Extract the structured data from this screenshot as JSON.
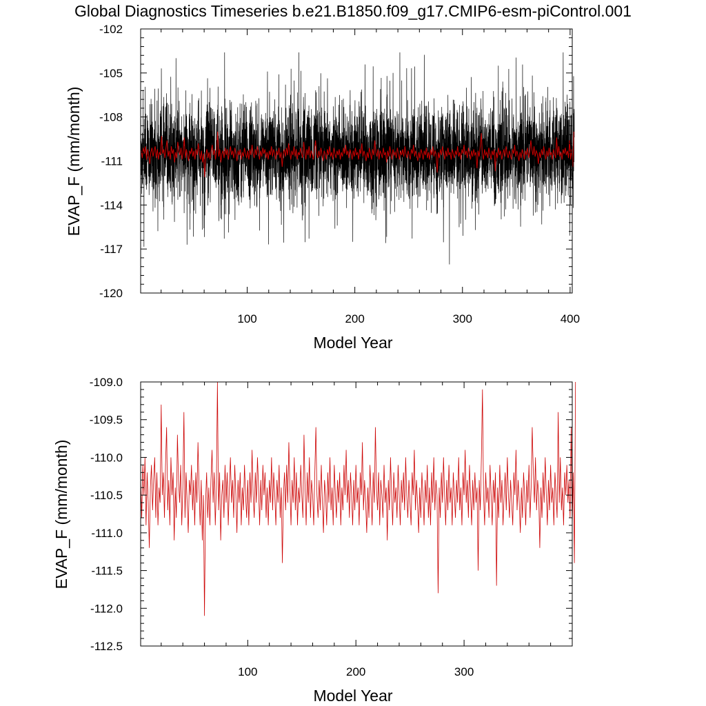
{
  "title": "Global Diagnostics Timeseries b.e21.B1850.f09_g17.CMIP6-esm-piControl.001",
  "colors": {
    "monthly": "#000000",
    "annual": "#cc0000"
  },
  "chart_data": [
    {
      "type": "line",
      "xlabel": "Model Year",
      "ylabel": "EVAP_F (mm/month)",
      "xlim": [
        1,
        402
      ],
      "ylim": [
        -120,
        -102
      ],
      "xticks": [
        100,
        200,
        300,
        400
      ],
      "yticks": [
        -120,
        -117,
        -114,
        -111,
        -108,
        -105,
        -102
      ],
      "yticklabels": [
        "-120",
        "-117",
        "-114",
        "-111",
        "-108",
        "-105",
        "-102"
      ],
      "series": [
        {
          "kind": "monthly",
          "color": "#000000",
          "mean": -110.4,
          "amplitude": 2.8,
          "min": -118.4,
          "max": -103.6,
          "points_per_year": 12
        },
        {
          "kind": "annual",
          "color": "#cc0000"
        }
      ]
    },
    {
      "type": "line",
      "xlabel": "Model Year",
      "ylabel": "EVAP_F (mm/month)",
      "xlim": [
        1,
        400
      ],
      "ylim": [
        -112.5,
        -109.0
      ],
      "xticks": [
        100,
        200,
        300
      ],
      "yticks": [
        -112.5,
        -112.0,
        -111.5,
        -111.0,
        -110.5,
        -110.0,
        -109.5,
        -109.0
      ],
      "yticklabels": [
        "-112.5",
        "-112.0",
        "-111.5",
        "-111.0",
        "-110.5",
        "-110.0",
        "-109.5",
        "-109.0"
      ],
      "series": [
        {
          "kind": "annual",
          "color": "#cc0000",
          "x_start": 1,
          "values": [
            -110.3,
            -110.8,
            -110.1,
            -110.5,
            -110.0,
            -110.9,
            -110.2,
            -110.6,
            -111.2,
            -110.4,
            -110.1,
            -110.7,
            -110.3,
            -110.0,
            -110.8,
            -110.2,
            -110.9,
            -110.4,
            -110.6,
            -109.3,
            -110.5,
            -110.2,
            -110.8,
            -110.1,
            -109.6,
            -110.7,
            -110.3,
            -110.9,
            -110.0,
            -110.5,
            -110.2,
            -111.1,
            -110.4,
            -110.8,
            -109.7,
            -110.3,
            -110.6,
            -110.1,
            -110.9,
            -110.4,
            -109.4,
            -110.8,
            -110.2,
            -110.6,
            -111.0,
            -110.3,
            -110.5,
            -110.1,
            -110.7,
            -110.3,
            -110.9,
            -110.2,
            -110.6,
            -109.8,
            -110.4,
            -110.9,
            -110.3,
            -111.1,
            -110.5,
            -112.1,
            -110.6,
            -110.2,
            -110.8,
            -110.4,
            -110.9,
            -110.3,
            -109.9,
            -110.6,
            -110.2,
            -110.9,
            -110.4,
            -109.0,
            -110.7,
            -110.2,
            -111.1,
            -110.5,
            -110.3,
            -110.8,
            -110.1,
            -110.6,
            -110.2,
            -110.9,
            -110.4,
            -110.0,
            -110.6,
            -110.3,
            -110.8,
            -110.1,
            -110.5,
            -111.0,
            -110.3,
            -110.6,
            -110.2,
            -110.9,
            -110.4,
            -110.7,
            -110.1,
            -110.5,
            -110.8,
            -110.3,
            -110.9,
            -110.2,
            -110.6,
            -109.9,
            -110.5,
            -110.8,
            -110.2,
            -110.6,
            -110.0,
            -110.4,
            -110.9,
            -110.3,
            -110.7,
            -110.1,
            -110.5,
            -110.2,
            -110.8,
            -110.4,
            -110.9,
            -110.3,
            -110.6,
            -110.0,
            -110.7,
            -110.2,
            -110.5,
            -110.9,
            -110.3,
            -110.6,
            -110.1,
            -110.8,
            -110.4,
            -111.4,
            -110.5,
            -110.2,
            -110.7,
            -110.1,
            -110.6,
            -109.8,
            -110.4,
            -110.9,
            -110.3,
            -110.6,
            -110.0,
            -110.7,
            -110.2,
            -110.9,
            -110.4,
            -110.6,
            -110.1,
            -110.5,
            -110.8,
            -109.7,
            -110.4,
            -110.9,
            -110.2,
            -110.6,
            -110.0,
            -110.8,
            -110.3,
            -110.5,
            -110.9,
            -110.2,
            -109.6,
            -110.5,
            -110.8,
            -110.3,
            -110.7,
            -110.1,
            -110.6,
            -111.0,
            -110.3,
            -110.5,
            -110.9,
            -110.2,
            -110.6,
            -110.0,
            -110.7,
            -110.4,
            -110.9,
            -110.1,
            -110.5,
            -110.8,
            -110.3,
            -110.6,
            -110.2,
            -110.9,
            -110.4,
            -110.7,
            -110.1,
            -110.5,
            -109.9,
            -110.6,
            -110.3,
            -110.8,
            -110.2,
            -110.5,
            -110.9,
            -110.3,
            -110.7,
            -110.1,
            -110.6,
            -110.4,
            -110.9,
            -110.2,
            -110.5,
            -109.8,
            -110.7,
            -110.3,
            -110.6,
            -111.0,
            -110.4,
            -110.8,
            -110.1,
            -110.5,
            -110.9,
            -110.2,
            -110.6,
            -109.6,
            -110.4,
            -110.7,
            -110.2,
            -110.9,
            -110.3,
            -110.5,
            -110.8,
            -110.1,
            -110.6,
            -110.4,
            -111.1,
            -110.3,
            -110.7,
            -110.0,
            -110.5,
            -110.9,
            -110.2,
            -110.6,
            -110.4,
            -110.8,
            -110.1,
            -110.5,
            -110.9,
            -110.3,
            -110.6,
            -110.2,
            -110.7,
            -110.0,
            -110.5,
            -110.8,
            -110.3,
            -110.6,
            -110.9,
            -110.2,
            -110.5,
            -109.9,
            -110.7,
            -110.3,
            -110.6,
            -111.0,
            -110.4,
            -110.8,
            -110.2,
            -110.5,
            -110.9,
            -110.3,
            -110.6,
            -110.1,
            -110.8,
            -110.4,
            -110.9,
            -110.2,
            -110.6,
            -110.0,
            -110.7,
            -110.3,
            -110.5,
            -111.8,
            -110.4,
            -110.8,
            -110.2,
            -110.6,
            -110.0,
            -110.5,
            -110.9,
            -110.3,
            -110.7,
            -110.1,
            -110.6,
            -110.4,
            -110.9,
            -110.2,
            -110.5,
            -110.8,
            -110.3,
            -110.6,
            -110.0,
            -110.7,
            -110.4,
            -110.9,
            -110.2,
            -110.5,
            -109.9,
            -110.6,
            -110.3,
            -110.8,
            -110.1,
            -110.5,
            -110.9,
            -110.3,
            -110.7,
            -110.2,
            -110.6,
            -110.4,
            -111.5,
            -110.3,
            -110.7,
            -110.0,
            -109.1,
            -110.5,
            -110.9,
            -110.2,
            -110.6,
            -110.4,
            -110.8,
            -110.1,
            -110.5,
            -110.9,
            -110.3,
            -110.6,
            -110.2,
            -111.7,
            -110.4,
            -110.8,
            -110.1,
            -110.6,
            -110.3,
            -110.9,
            -110.5,
            -110.2,
            -110.7,
            -110.0,
            -110.5,
            -110.8,
            -110.3,
            -110.6,
            -110.9,
            -110.2,
            -110.5,
            -109.9,
            -110.7,
            -110.3,
            -110.6,
            -111.0,
            -110.4,
            -110.8,
            -110.2,
            -110.5,
            -110.9,
            -110.3,
            -110.6,
            -110.1,
            -110.8,
            -110.4,
            -109.6,
            -110.2,
            -110.6,
            -110.0,
            -110.7,
            -110.3,
            -110.5,
            -111.2,
            -110.4,
            -110.8,
            -110.2,
            -110.6,
            -110.0,
            -110.5,
            -110.9,
            -110.3,
            -110.7,
            -110.1,
            -110.6,
            -110.4,
            -110.9,
            -110.2,
            -110.5,
            -110.8,
            -109.4,
            -110.6,
            -110.0,
            -110.7,
            -110.4,
            -110.9,
            -110.2,
            -110.5,
            -110.1,
            -110.6,
            -110.3,
            -110.8,
            -109.6,
            -110.9,
            -110.2,
            -111.4,
            -109.0
          ]
        }
      ]
    }
  ]
}
